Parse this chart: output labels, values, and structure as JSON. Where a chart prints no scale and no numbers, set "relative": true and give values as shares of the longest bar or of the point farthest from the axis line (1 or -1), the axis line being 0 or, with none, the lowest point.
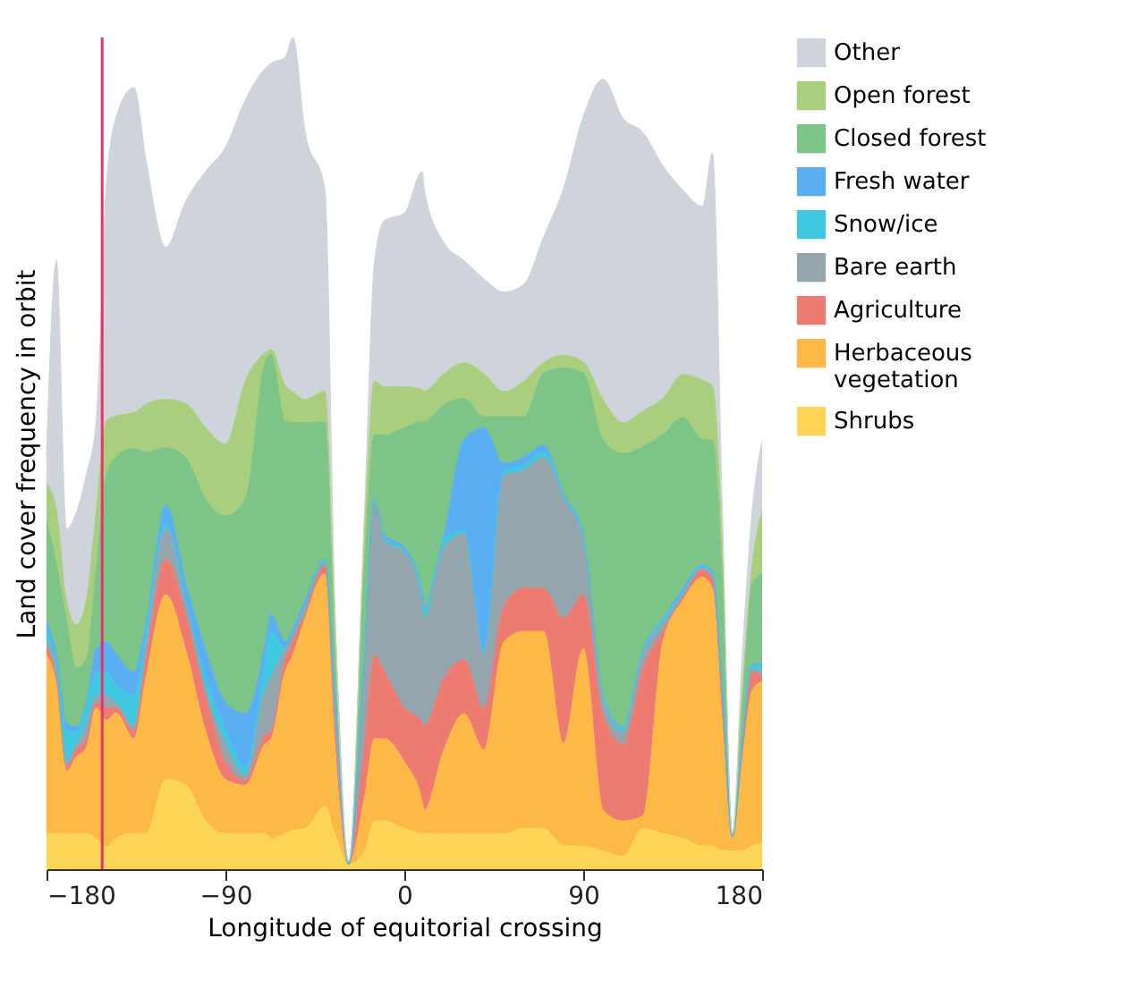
{
  "chart_data": {
    "type": "area",
    "stacked": true,
    "relative": true,
    "xlabel": "Longitude of equitorial crossing",
    "ylabel": "Land cover frequency in orbit",
    "legend": "right",
    "grid": false,
    "xlim": [
      -180,
      180
    ],
    "xticks": [
      {
        "value": -180,
        "label": "−180"
      },
      {
        "value": -90,
        "label": "−90"
      },
      0,
      90,
      180
    ],
    "x": [
      -180,
      -175,
      -170,
      -165,
      -160,
      -155,
      -150,
      -145,
      -136,
      -130,
      -120,
      -110,
      -100,
      -90,
      -80,
      -70,
      -67,
      -60,
      -56,
      -50,
      -40,
      -35,
      -28,
      -20,
      -15,
      -10,
      0,
      9,
      10,
      20,
      30,
      40,
      50,
      60,
      70,
      80,
      90,
      100,
      110,
      120,
      130,
      140,
      150,
      155,
      160,
      165,
      170,
      175,
      180
    ],
    "ref_lines": [
      {
        "axis": "x",
        "value": -152,
        "color": "#e8336b"
      }
    ],
    "series": [
      {
        "name": "Shrubs",
        "color": "#fdd556",
        "values": [
          0.043,
          0.043,
          0.043,
          0.043,
          0.043,
          0.037,
          0.026,
          0.037,
          0.043,
          0.043,
          0.108,
          0.101,
          0.058,
          0.043,
          0.043,
          0.043,
          0.037,
          0.043,
          0.047,
          0.049,
          0.075,
          0.043,
          0.006,
          0.022,
          0.058,
          0.058,
          0.049,
          0.043,
          0.043,
          0.043,
          0.043,
          0.043,
          0.043,
          0.049,
          0.049,
          0.028,
          0.028,
          0.022,
          0.015,
          0.049,
          0.043,
          0.037,
          0.028,
          0.028,
          0.022,
          0.022,
          0.022,
          0.028,
          0.032
        ]
      },
      {
        "name": "Herbaceous vegetation",
        "color": "#fdb947",
        "values": [
          0.215,
          0.178,
          0.075,
          0.092,
          0.103,
          0.157,
          0.153,
          0.151,
          0.114,
          0.187,
          0.222,
          0.163,
          0.108,
          0.065,
          0.058,
          0.108,
          0.12,
          0.194,
          0.211,
          0.252,
          0.28,
          0.108,
          0,
          0.065,
          0.099,
          0.099,
          0.08,
          0.039,
          0.028,
          0.101,
          0.144,
          0.101,
          0.23,
          0.237,
          0.237,
          0.123,
          0.237,
          0.049,
          0.043,
          0.015,
          0.23,
          0.286,
          0.323,
          0.31,
          0.151,
          0.015,
          0.108,
          0.187,
          0.194
        ]
      },
      {
        "name": "Agriculture",
        "color": "#ee7b72",
        "values": [
          0.009,
          0.009,
          0.006,
          0.009,
          0.011,
          0.006,
          0.015,
          0.006,
          0.009,
          0.022,
          0.043,
          0.043,
          0.043,
          0.022,
          0.006,
          0.011,
          0.009,
          0.015,
          0.017,
          0.006,
          0.011,
          0.022,
          0,
          0.065,
          0.101,
          0.08,
          0.065,
          0.095,
          0.101,
          0.086,
          0.065,
          0.049,
          0.043,
          0.052,
          0.052,
          0.151,
          0.065,
          0.116,
          0.092,
          0.178,
          0.013,
          0.004,
          0.009,
          0.011,
          0.022,
          0.002,
          0.011,
          0.022,
          0.006
        ]
      },
      {
        "name": "Bare earth",
        "color": "#95a5ae",
        "values": [
          0.009,
          0.006,
          0.004,
          0.006,
          0.015,
          0.009,
          0.015,
          0.006,
          0.006,
          0.013,
          0.037,
          0.015,
          0.006,
          0.022,
          0.006,
          0.054,
          0.065,
          0.013,
          0.009,
          0.009,
          0.002,
          0.022,
          0,
          0.097,
          0.183,
          0.157,
          0.187,
          0.142,
          0.129,
          0.157,
          0.151,
          0.065,
          0.157,
          0.142,
          0.157,
          0.144,
          0.065,
          0.013,
          0.015,
          0.015,
          0.009,
          0.002,
          0.002,
          0.002,
          0.011,
          0,
          0.006,
          0.004,
          0.004
        ]
      },
      {
        "name": "Snow/ice",
        "color": "#40c8e0",
        "values": [
          0.013,
          0.011,
          0.039,
          0.015,
          0.022,
          0.028,
          0.028,
          0.022,
          0.037,
          0.015,
          0.006,
          0,
          0.015,
          0.015,
          0.009,
          0.032,
          0.054,
          0,
          0,
          0,
          0.002,
          0.011,
          0,
          0.004,
          0.002,
          0.004,
          0.002,
          0.011,
          0.011,
          0.009,
          0.004,
          0.004,
          0.006,
          0.006,
          0.006,
          0.002,
          0.004,
          0.004,
          0.004,
          0.004,
          0.004,
          0.004,
          0.002,
          0.004,
          0.006,
          0,
          0.002,
          0.004,
          0.009
        ]
      },
      {
        "name": "Fresh water",
        "color": "#5aaef2",
        "values": [
          0.009,
          0.011,
          0.009,
          0.006,
          0.006,
          0.028,
          0.037,
          0.037,
          0.028,
          0.015,
          0.022,
          0.022,
          0.034,
          0.034,
          0.065,
          0.022,
          0.022,
          0.009,
          0.006,
          0.006,
          0.002,
          0.011,
          0,
          0.006,
          0.002,
          0.004,
          0.004,
          0.004,
          0.004,
          0.006,
          0.11,
          0.269,
          0.009,
          0.009,
          0.009,
          0.004,
          0.004,
          0.004,
          0.002,
          0.002,
          0.002,
          0.004,
          0.002,
          0.004,
          0.004,
          0,
          0.002,
          0.002,
          0.002
        ]
      },
      {
        "name": "Closed forest",
        "color": "#7cc487",
        "values": [
          0.123,
          0.108,
          0.125,
          0.071,
          0.052,
          0.095,
          0.2,
          0.237,
          0.269,
          0.206,
          0.069,
          0.151,
          0.181,
          0.224,
          0.258,
          0.34,
          0.312,
          0.265,
          0.247,
          0.215,
          0.166,
          0.043,
          0.002,
          0.108,
          0.077,
          0.12,
          0.144,
          0.204,
          0.222,
          0.157,
          0.049,
          0.013,
          0.056,
          0.049,
          0.086,
          0.151,
          0.194,
          0.308,
          0.329,
          0.245,
          0.222,
          0.206,
          0.151,
          0.157,
          0.129,
          0.002,
          0.043,
          0.097,
          0.108
        ]
      },
      {
        "name": "Open forest",
        "color": "#a9cf7e",
        "values": [
          0.043,
          0.065,
          0.022,
          0.052,
          0.071,
          0.071,
          0.065,
          0.049,
          0.043,
          0.058,
          0.058,
          0.065,
          0.086,
          0.086,
          0.142,
          0.011,
          0.006,
          0.043,
          0.037,
          0.028,
          0.037,
          0.043,
          0,
          0.043,
          0.065,
          0.058,
          0.049,
          0.039,
          0.037,
          0.037,
          0.043,
          0.052,
          0.03,
          0.043,
          0.013,
          0.015,
          0.013,
          0.049,
          0.037,
          0.043,
          0.043,
          0.052,
          0.071,
          0.065,
          0.043,
          0,
          0.022,
          0.022,
          0.075
        ]
      },
      {
        "name": "Other",
        "color": "#cfd4dc",
        "values": [
          0.032,
          0.301,
          0.086,
          0.135,
          0.151,
          0.108,
          0.28,
          0.359,
          0.391,
          0.295,
          0.183,
          0.243,
          0.308,
          0.357,
          0.338,
          0.342,
          0.344,
          0.394,
          0.426,
          0.323,
          0.243,
          0.022,
          0.002,
          0.022,
          0.144,
          0.2,
          0.209,
          0.262,
          0.243,
          0.157,
          0.123,
          0.114,
          0.12,
          0.116,
          0.151,
          0.2,
          0.295,
          0.385,
          0.366,
          0.335,
          0.28,
          0.222,
          0.209,
          0.28,
          0.043,
          0.002,
          0.043,
          0.065,
          0.086
        ]
      }
    ]
  }
}
